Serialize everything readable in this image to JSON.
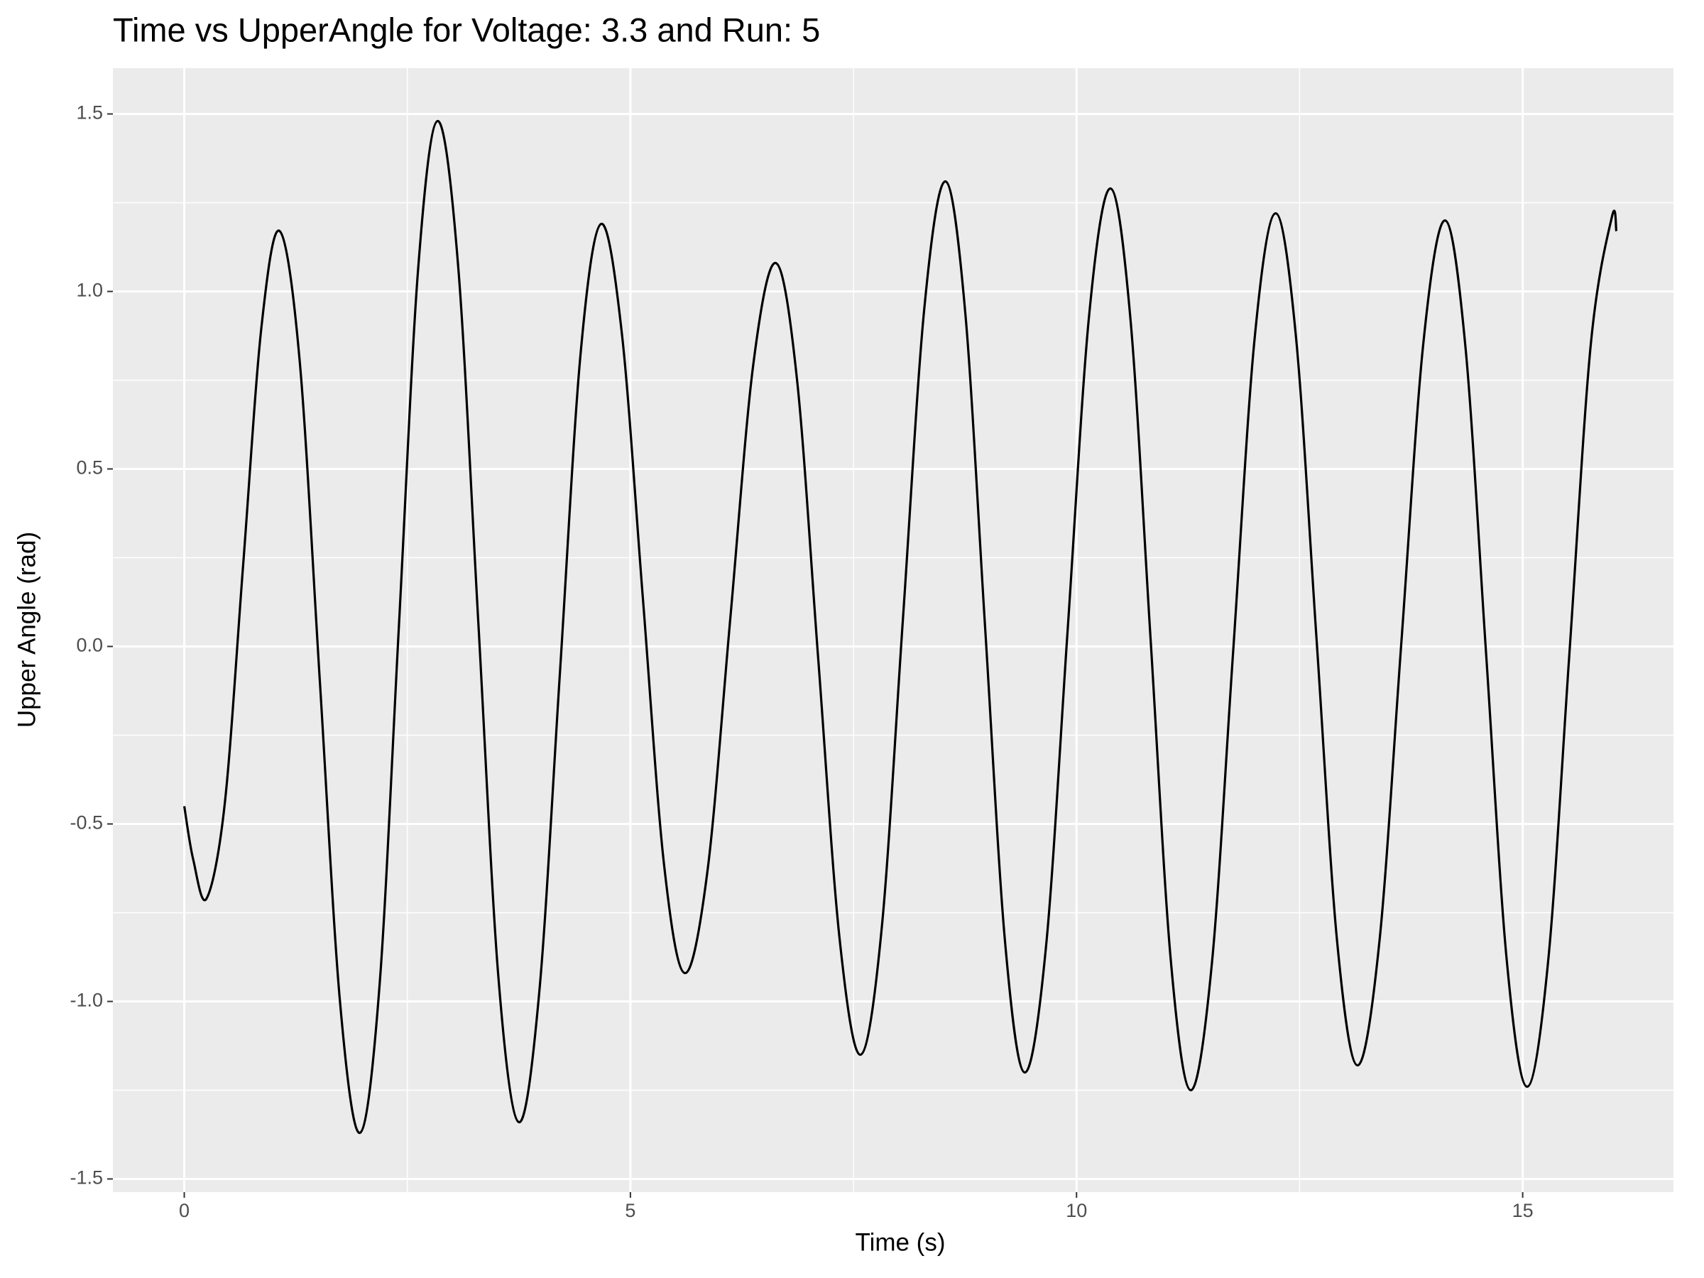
{
  "chart_data": {
    "type": "line",
    "title": "Time vs UpperAngle for Voltage: 3.3 and Run: 5",
    "x_label": "Time (s)",
    "y_label": "Upper Angle (rad)",
    "xlim": [
      -0.8,
      16.69
    ],
    "ylim": [
      -1.537,
      1.629
    ],
    "xticks": [
      0,
      5,
      10,
      15
    ],
    "yticks": [
      -1.5,
      {
        "value": -1,
        "label": "-1.0"
      },
      -0.5,
      {
        "value": 0,
        "label": "0.0"
      },
      0.5,
      {
        "value": 1,
        "label": "1.0"
      },
      1.5
    ],
    "grid": true,
    "series": [
      {
        "color": "#000000",
        "x": [
          0,
          0.1,
          0.25,
          0.455,
          0.66,
          0.865,
          1.07,
          1.295,
          1.52,
          1.745,
          1.97,
          2.19,
          2.405,
          2.62,
          2.84,
          3.07,
          3.295,
          3.52,
          3.75,
          3.98,
          4.21,
          4.44,
          4.67,
          4.905,
          5.14,
          5.375,
          5.61,
          5.865,
          6.12,
          6.375,
          6.63,
          6.868,
          7.105,
          7.343,
          7.58,
          7.818,
          8.055,
          8.293,
          8.53,
          8.753,
          8.975,
          9.198,
          9.42,
          9.66,
          9.9,
          10.14,
          10.38,
          10.605,
          10.83,
          11.055,
          11.28,
          11.518,
          11.755,
          11.993,
          12.23,
          12.46,
          12.69,
          12.92,
          13.15,
          13.395,
          13.64,
          13.885,
          14.13,
          14.36,
          14.59,
          14.82,
          15.05,
          15.288,
          15.525,
          15.763,
          16.0,
          16.05
        ],
        "values": [
          -0.45,
          -0.6,
          -0.71,
          -0.44,
          0.23,
          0.9,
          1.17,
          0.8,
          -0.1,
          -1.0,
          -1.37,
          -0.95,
          0.055,
          1.06,
          1.48,
          1.07,
          0.07,
          -0.93,
          -1.34,
          -0.97,
          -0.075,
          0.82,
          1.19,
          0.88,
          0.135,
          -0.61,
          -0.92,
          -0.63,
          0.08,
          0.79,
          1.08,
          0.75,
          -0.035,
          -0.82,
          -1.15,
          -0.79,
          0.08,
          0.95,
          1.31,
          0.94,
          0.055,
          -0.83,
          -1.2,
          -0.84,
          0.045,
          0.93,
          1.29,
          0.92,
          0.02,
          -0.88,
          -1.25,
          -0.89,
          -0.015,
          0.86,
          1.22,
          0.87,
          0.02,
          -0.83,
          -1.18,
          -0.83,
          0.01,
          0.85,
          1.2,
          0.84,
          -0.02,
          -0.88,
          -1.24,
          -0.88,
          -0.015,
          0.85,
          1.21,
          1.17
        ]
      }
    ]
  }
}
